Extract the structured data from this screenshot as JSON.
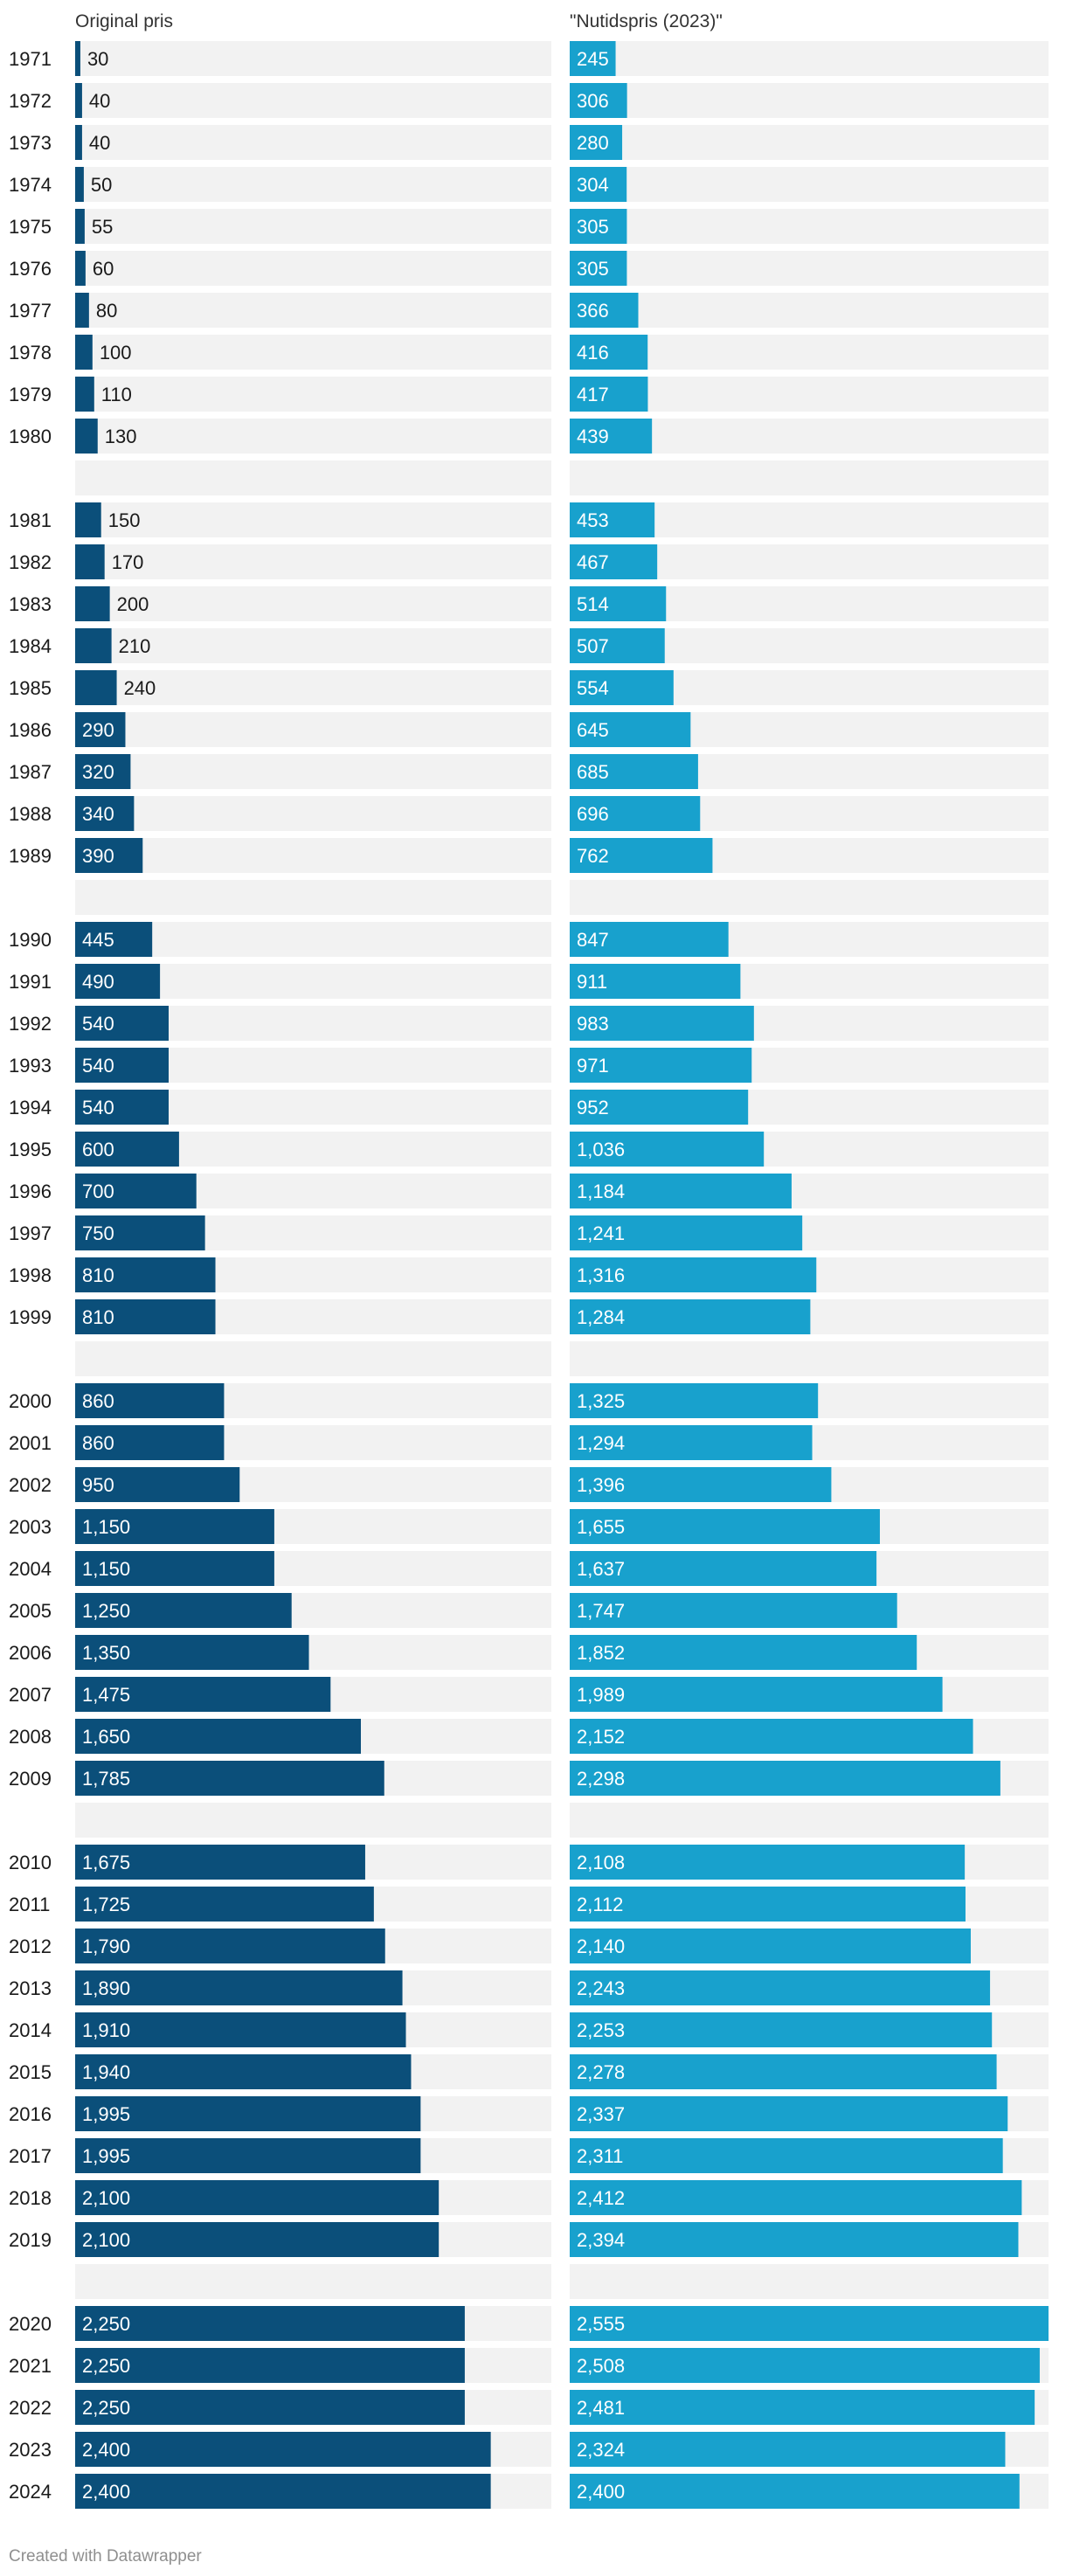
{
  "chart_data": {
    "type": "bar",
    "orientation": "horizontal",
    "categories": [
      "1971",
      "1972",
      "1973",
      "1974",
      "1975",
      "1976",
      "1977",
      "1978",
      "1979",
      "1980",
      "1981",
      "1982",
      "1983",
      "1984",
      "1985",
      "1986",
      "1987",
      "1988",
      "1989",
      "1990",
      "1991",
      "1992",
      "1993",
      "1994",
      "1995",
      "1996",
      "1997",
      "1998",
      "1999",
      "2000",
      "2001",
      "2002",
      "2003",
      "2004",
      "2005",
      "2006",
      "2007",
      "2008",
      "2009",
      "2010",
      "2011",
      "2012",
      "2013",
      "2014",
      "2015",
      "2016",
      "2017",
      "2018",
      "2019",
      "2020",
      "2021",
      "2022",
      "2023",
      "2024"
    ],
    "series": [
      {
        "name": "Original pris",
        "color": "#0b4f7a",
        "xlim": [
          0,
          2750
        ],
        "values": [
          30,
          40,
          40,
          50,
          55,
          60,
          80,
          100,
          110,
          130,
          150,
          170,
          200,
          210,
          240,
          290,
          320,
          340,
          390,
          445,
          490,
          540,
          540,
          540,
          600,
          700,
          750,
          810,
          810,
          860,
          860,
          950,
          1150,
          1150,
          1250,
          1350,
          1475,
          1650,
          1785,
          1675,
          1725,
          1790,
          1890,
          1910,
          1940,
          1995,
          1995,
          2100,
          2100,
          2250,
          2250,
          2250,
          2400,
          2400
        ]
      },
      {
        "name": "\"Nutidspris (2023)\"",
        "color": "#18a1cd",
        "xlim": [
          0,
          2555
        ],
        "values": [
          245,
          306,
          280,
          304,
          305,
          305,
          366,
          416,
          417,
          439,
          453,
          467,
          514,
          507,
          554,
          645,
          685,
          696,
          762,
          847,
          911,
          983,
          971,
          952,
          1036,
          1184,
          1241,
          1316,
          1284,
          1325,
          1294,
          1396,
          1655,
          1637,
          1747,
          1852,
          1989,
          2152,
          2298,
          2108,
          2112,
          2140,
          2243,
          2253,
          2278,
          2337,
          2311,
          2412,
          2394,
          2555,
          2508,
          2481,
          2324,
          2400
        ]
      }
    ],
    "group_breaks_after": [
      "1980",
      "1989",
      "1999",
      "2009",
      "2019"
    ],
    "track_color": "#f2f2f2",
    "footer": "Created with Datawrapper"
  }
}
